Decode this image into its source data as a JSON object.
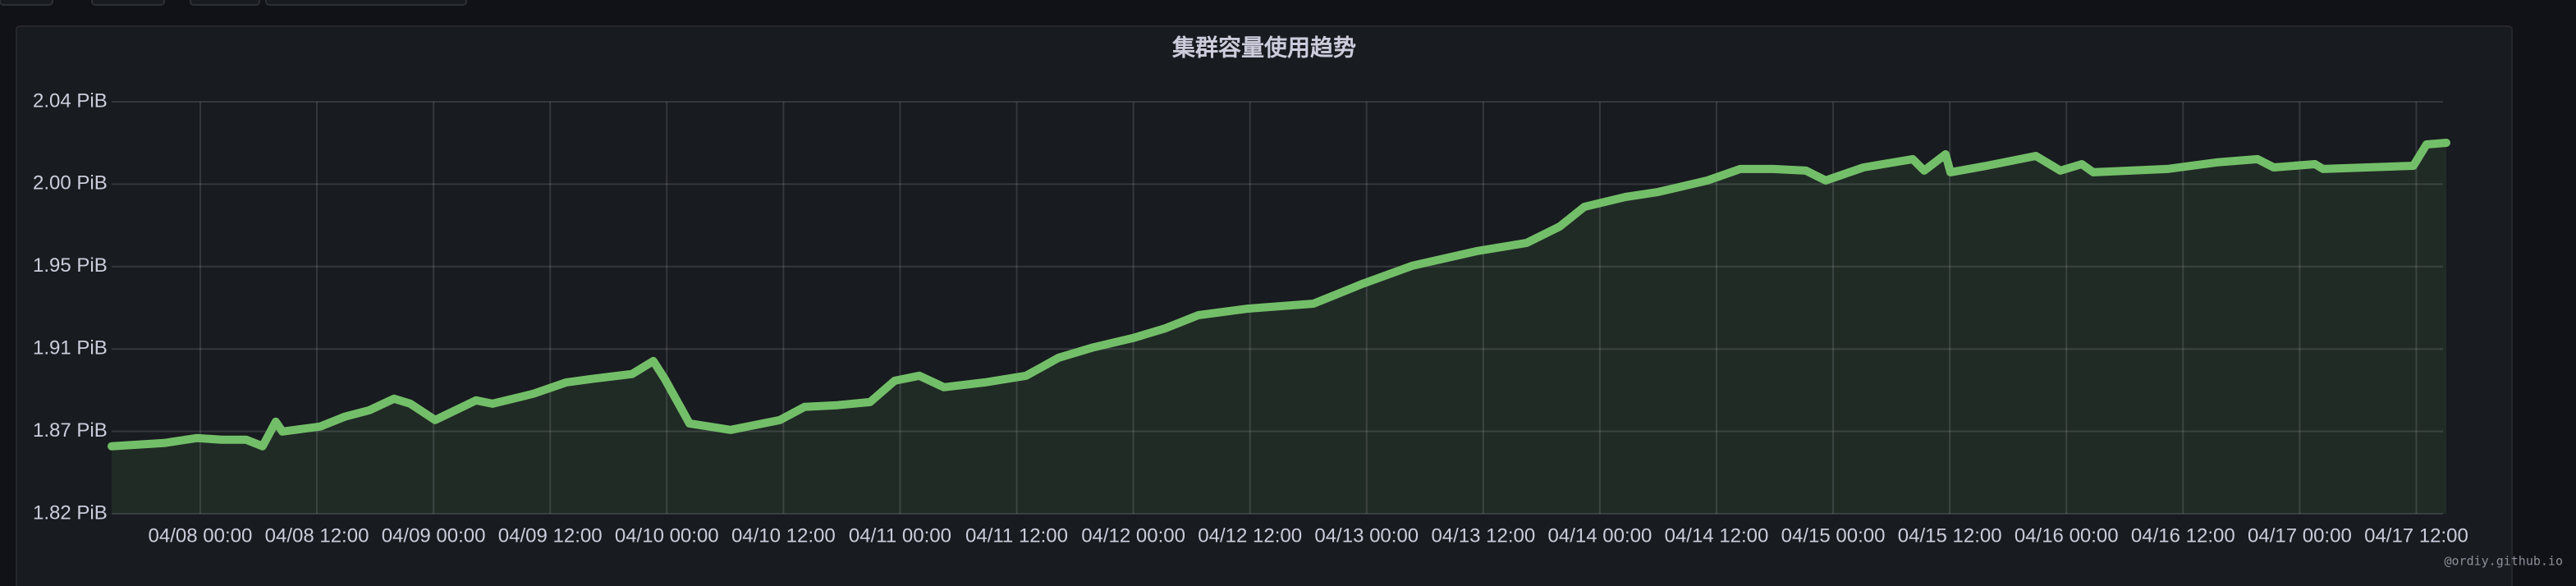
{
  "chart_data": {
    "type": "line",
    "title": "集群容量使用趋势",
    "watermark": "@ordiy.github.io",
    "x": [
      "04/07 14:53",
      "04/07 20:17",
      "04/07 23:40",
      "04/08 02:12",
      "04/08 04:44",
      "04/08 06:25",
      "04/08 07:46",
      "04/08 08:27",
      "04/08 12:20",
      "04/08 14:52",
      "04/08 17:24",
      "04/08 19:56",
      "04/08 21:37",
      "04/09 00:10",
      "04/09 04:23",
      "04/09 06:04",
      "04/09 10:17",
      "04/09 13:40",
      "04/09 16:12",
      "04/09 20:26",
      "04/09 22:37",
      "04/09 23:48",
      "04/10 02:20",
      "04/10 06:34",
      "04/10 11:38",
      "04/10 14:10",
      "04/10 17:32",
      "04/10 20:55",
      "04/10 23:27",
      "04/11 01:59",
      "04/11 04:31",
      "04/11 08:44",
      "04/11 12:58",
      "04/11 16:20",
      "04/11 19:43",
      "04/11 23:57",
      "04/12 03:19",
      "04/12 06:42",
      "04/12 11:46",
      "04/12 18:32",
      "04/12 23:35",
      "04/13 04:40",
      "04/13 11:25",
      "04/13 16:29",
      "04/13 19:52",
      "04/13 22:24",
      "04/14 02:37",
      "04/14 06:00",
      "04/14 11:04",
      "04/14 14:27",
      "04/14 17:49",
      "04/14 21:12",
      "04/14 23:14",
      "04/15 03:07",
      "04/15 08:11",
      "04/15 09:22",
      "04/15 11:34",
      "04/15 12:04",
      "04/15 15:47",
      "04/15 20:51",
      "04/15 23:23",
      "04/16 01:35",
      "04/16 02:46",
      "04/16 10:22",
      "04/16 15:26",
      "04/16 19:40",
      "04/16 21:20",
      "04/17 01:34",
      "04/17 02:25",
      "04/17 11:42",
      "04/17 13:03",
      "04/17 15:05"
    ],
    "series": [
      {
        "color": "#73bf69",
        "values": [
          1.8579,
          1.8596,
          1.8623,
          1.8614,
          1.8614,
          1.8579,
          1.8711,
          1.8658,
          1.8685,
          1.8738,
          1.8773,
          1.8835,
          1.8808,
          1.872,
          1.8826,
          1.8808,
          1.8862,
          1.8923,
          1.8941,
          1.8968,
          1.9038,
          1.8941,
          1.8702,
          1.8667,
          1.872,
          1.8791,
          1.88,
          1.8817,
          1.8932,
          1.8959,
          1.8897,
          1.8923,
          1.8959,
          1.9056,
          1.9109,
          1.9162,
          1.9215,
          1.9285,
          1.932,
          1.9347,
          1.9454,
          1.9551,
          1.9631,
          1.9675,
          1.9763,
          1.9869,
          1.9922,
          1.9949,
          2.0011,
          2.0073,
          2.0073,
          2.0064,
          2.0011,
          2.0081,
          2.0126,
          2.0064,
          2.0152,
          2.0055,
          2.009,
          2.0143,
          2.0064,
          2.0099,
          2.0055,
          2.0073,
          2.0108,
          2.0126,
          2.0081,
          2.0099,
          2.0073,
          2.009,
          2.0205,
          2.0214
        ]
      }
    ],
    "xlim": [
      "04/07 14:53",
      "04/17 15:05"
    ],
    "xticks": [
      "04/08 00:00",
      "04/08 12:00",
      "04/09 00:00",
      "04/09 12:00",
      "04/10 00:00",
      "04/10 12:00",
      "04/11 00:00",
      "04/11 12:00",
      "04/12 00:00",
      "04/12 12:00",
      "04/13 00:00",
      "04/13 12:00",
      "04/14 00:00",
      "04/14 12:00",
      "04/15 00:00",
      "04/15 12:00",
      "04/16 00:00",
      "04/16 12:00",
      "04/17 00:00",
      "04/17 12:00"
    ],
    "ylim": [
      1.8215,
      2.0435
    ],
    "yticks": [
      {
        "value": 1.8215,
        "label": "1.82 PiB"
      },
      {
        "value": 1.8659,
        "label": "1.87 PiB"
      },
      {
        "value": 1.9103,
        "label": "1.91 PiB"
      },
      {
        "value": 1.9547,
        "label": "1.95 PiB"
      },
      {
        "value": 1.9991,
        "label": "2.00 PiB"
      },
      {
        "value": 2.0435,
        "label": "2.04 PiB"
      }
    ],
    "grid": true
  }
}
